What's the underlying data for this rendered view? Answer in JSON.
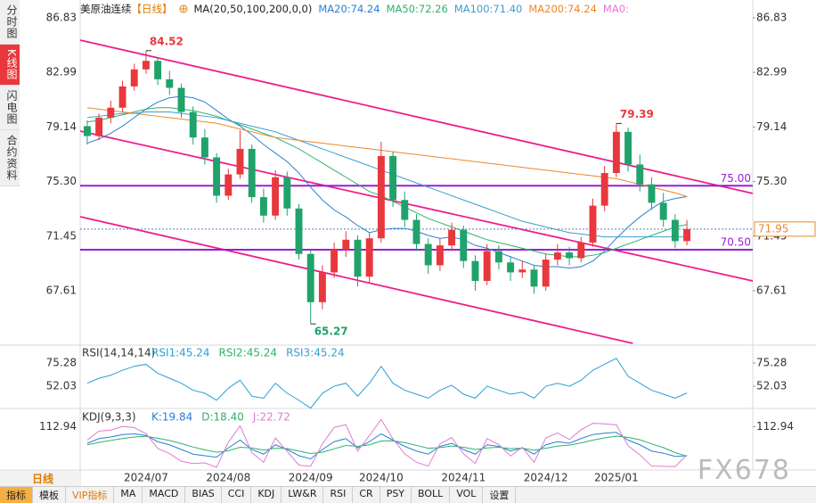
{
  "tabs": [
    "分时图",
    "K线图",
    "闪电图",
    "合约资料"
  ],
  "period_button": "日线",
  "toolbar": [
    "指标",
    "模板",
    "VIP指标",
    "MA",
    "MACD",
    "BIAS",
    "CCI",
    "KDJ",
    "LW&R",
    "RSI",
    "CR",
    "PSY",
    "BOLL",
    "VOL",
    "设置"
  ],
  "watermark": "FX678",
  "chart_data": {
    "type": "candlestick",
    "title": "美原油连续",
    "period": "【日线】",
    "indicator": "MA(20,50,100,200,0,0)",
    "up_color": "#e8383d",
    "down_color": "#1fa36b",
    "categories": [
      null,
      null,
      null,
      null,
      null,
      "2024/07",
      null,
      null,
      null,
      null,
      null,
      null,
      "2024/08",
      null,
      null,
      null,
      null,
      null,
      null,
      "2024/09",
      null,
      null,
      null,
      null,
      null,
      "2024/10",
      null,
      null,
      null,
      null,
      null,
      null,
      "2024/11",
      null,
      null,
      null,
      null,
      null,
      null,
      "2024/12",
      null,
      null,
      null,
      null,
      null,
      "2025/01",
      null,
      null,
      null,
      null,
      null,
      null
    ],
    "xlim": [
      -0.6,
      56.6
    ],
    "ylim": [
      63.9,
      86.83
    ],
    "yticks": [
      86.83,
      82.99,
      79.14,
      {
        "value": 75.3,
        "label": "75.30"
      },
      71.45,
      67.61
    ],
    "candles": [
      [
        79.2,
        79.6,
        77.9,
        78.5
      ],
      [
        78.5,
        80.1,
        78.2,
        79.8
      ],
      [
        79.8,
        81.0,
        79.4,
        80.5
      ],
      [
        80.5,
        82.4,
        80.2,
        82.0
      ],
      [
        82.0,
        83.6,
        81.7,
        83.2
      ],
      [
        83.2,
        84.52,
        82.9,
        83.8
      ],
      [
        83.8,
        84.0,
        82.1,
        82.5
      ],
      [
        82.5,
        83.1,
        81.4,
        81.9
      ],
      [
        81.9,
        82.2,
        79.8,
        80.2
      ],
      [
        80.2,
        80.6,
        77.9,
        78.4
      ],
      [
        78.4,
        79.0,
        76.5,
        77.0
      ],
      [
        77.0,
        77.3,
        73.8,
        74.3
      ],
      [
        74.3,
        76.2,
        74.0,
        75.8
      ],
      [
        75.8,
        78.9,
        75.5,
        77.6
      ],
      [
        77.6,
        77.9,
        73.8,
        74.2
      ],
      [
        74.2,
        74.8,
        72.4,
        72.9
      ],
      [
        72.9,
        76.1,
        72.6,
        75.6
      ],
      [
        75.6,
        76.0,
        72.9,
        73.4
      ],
      [
        73.4,
        73.7,
        69.8,
        70.2
      ],
      [
        70.2,
        70.5,
        65.27,
        66.8
      ],
      [
        66.8,
        69.4,
        66.3,
        68.9
      ],
      [
        68.9,
        71.0,
        68.5,
        70.5
      ],
      [
        70.5,
        71.8,
        70.0,
        71.2
      ],
      [
        71.2,
        71.5,
        67.9,
        68.6
      ],
      [
        68.6,
        71.7,
        68.2,
        71.3
      ],
      [
        71.3,
        78.1,
        71.0,
        77.1
      ],
      [
        77.1,
        77.4,
        73.5,
        74.0
      ],
      [
        74.0,
        74.6,
        72.1,
        72.6
      ],
      [
        72.6,
        73.0,
        70.4,
        70.9
      ],
      [
        70.9,
        71.3,
        68.8,
        69.4
      ],
      [
        69.4,
        71.3,
        69.0,
        70.8
      ],
      [
        70.8,
        72.4,
        70.4,
        71.9
      ],
      [
        71.9,
        72.2,
        69.2,
        69.7
      ],
      [
        69.7,
        70.1,
        67.6,
        68.3
      ],
      [
        68.3,
        70.9,
        68.0,
        70.4
      ],
      [
        70.4,
        70.8,
        69.1,
        69.6
      ],
      [
        69.6,
        70.0,
        68.3,
        68.9
      ],
      [
        68.9,
        69.7,
        68.5,
        69.1
      ],
      [
        69.1,
        69.4,
        67.4,
        67.9
      ],
      [
        67.9,
        70.2,
        67.6,
        69.8
      ],
      [
        69.8,
        70.9,
        69.4,
        70.3
      ],
      [
        70.3,
        70.7,
        69.4,
        69.9
      ],
      [
        69.9,
        71.4,
        69.6,
        71.0
      ],
      [
        71.0,
        74.1,
        70.7,
        73.6
      ],
      [
        73.6,
        76.4,
        73.2,
        75.9
      ],
      [
        75.9,
        79.39,
        75.6,
        78.8
      ],
      [
        78.8,
        79.1,
        76.0,
        76.5
      ],
      [
        76.5,
        77.2,
        74.6,
        75.1
      ],
      [
        75.1,
        75.6,
        73.3,
        73.8
      ],
      [
        73.8,
        74.5,
        72.1,
        72.6
      ],
      [
        72.6,
        73.0,
        70.6,
        71.1
      ],
      [
        71.1,
        72.6,
        70.8,
        71.95
      ]
    ],
    "series": [
      {
        "name": "MA20:74.24",
        "color": "#2a7fd4",
        "values": [
          78.0,
          78.3,
          78.7,
          79.2,
          79.8,
          80.4,
          80.9,
          81.2,
          81.3,
          81.2,
          80.9,
          80.3,
          79.7,
          79.2,
          78.6,
          77.9,
          77.3,
          76.7,
          75.9,
          74.9,
          74.0,
          73.3,
          72.8,
          72.2,
          71.7,
          71.9,
          72.0,
          72.0,
          71.8,
          71.5,
          71.3,
          71.4,
          71.2,
          70.8,
          70.6,
          70.3,
          70.0,
          69.7,
          69.4,
          69.3,
          69.3,
          69.2,
          69.3,
          69.7,
          70.4,
          71.3,
          72.1,
          72.8,
          73.4,
          73.9,
          74.1,
          74.24
        ]
      },
      {
        "name": "MA50:72.26",
        "color": "#2cb36a",
        "values": [
          79.5,
          79.6,
          79.8,
          80.0,
          80.2,
          80.4,
          80.5,
          80.5,
          80.4,
          80.3,
          80.1,
          79.9,
          79.6,
          79.3,
          79.0,
          78.7,
          78.4,
          78.0,
          77.6,
          77.1,
          76.6,
          76.1,
          75.6,
          75.1,
          74.6,
          74.3,
          73.9,
          73.5,
          73.1,
          72.7,
          72.4,
          72.1,
          71.8,
          71.5,
          71.2,
          71.0,
          70.8,
          70.6,
          70.4,
          70.2,
          70.1,
          70.0,
          70.0,
          70.1,
          70.3,
          70.6,
          70.9,
          71.2,
          71.5,
          71.8,
          72.1,
          72.26
        ]
      },
      {
        "name": "MA100:71.40",
        "color": "#3a9ecf",
        "values": [
          79.8,
          79.9,
          80.0,
          80.1,
          80.1,
          80.2,
          80.2,
          80.2,
          80.1,
          80.0,
          79.9,
          79.8,
          79.6,
          79.4,
          79.2,
          79.0,
          78.8,
          78.5,
          78.2,
          77.9,
          77.6,
          77.3,
          77.0,
          76.7,
          76.4,
          76.1,
          75.8,
          75.5,
          75.2,
          74.9,
          74.6,
          74.3,
          74.0,
          73.7,
          73.4,
          73.1,
          72.8,
          72.5,
          72.3,
          72.1,
          71.9,
          71.7,
          71.6,
          71.5,
          71.4,
          71.4,
          71.4,
          71.4,
          71.4,
          71.4,
          71.4,
          71.4
        ]
      },
      {
        "name": "MA200:74.24",
        "color": "#e8892b",
        "values": [
          80.5,
          80.4,
          80.3,
          80.2,
          80.1,
          80.0,
          79.9,
          79.8,
          79.7,
          79.6,
          79.5,
          79.4,
          79.2,
          79.0,
          78.8,
          78.6,
          78.4,
          78.3,
          78.2,
          78.1,
          78.0,
          77.9,
          77.8,
          77.7,
          77.6,
          77.5,
          77.4,
          77.3,
          77.2,
          77.1,
          77.0,
          76.9,
          76.8,
          76.7,
          76.6,
          76.5,
          76.4,
          76.3,
          76.2,
          76.1,
          76.0,
          75.9,
          75.8,
          75.7,
          75.6,
          75.5,
          75.3,
          75.1,
          74.9,
          74.7,
          74.5,
          74.24
        ]
      }
    ],
    "legend_extra": "MA0:",
    "extremes": [
      {
        "x": 5,
        "value": 84.52
      },
      {
        "x": 19,
        "value": 65.27
      },
      {
        "x": 45,
        "value": 79.39
      }
    ],
    "trendlines": [
      {
        "x": [
          -0.6,
          56.6
        ],
        "values": [
          85.26,
          74.46
        ]
      },
      {
        "x": [
          -0.6,
          56.6
        ],
        "values": [
          78.85,
          68.3
        ]
      },
      {
        "x": [
          -0.6,
          46.4
        ],
        "values": [
          72.82,
          63.9
        ]
      }
    ],
    "levels": [
      {
        "value": 75,
        "label": "75.00"
      },
      {
        "value": 70.5,
        "label": "70.50"
      }
    ],
    "last_price": {
      "value": 71.95,
      "label": "71.95"
    },
    "rsi": {
      "title": "RSI(14,14,14)",
      "ylim": [
        32.4,
        90.5
      ],
      "yticks": [
        75.28,
        52.03
      ],
      "series": [
        {
          "name": "RSI1:45.24",
          "color": "#2a9fd6",
          "values": [
            55,
            60,
            63,
            68,
            72,
            74,
            65,
            60,
            55,
            48,
            45,
            38,
            50,
            58,
            42,
            40,
            55,
            45,
            38,
            30,
            45,
            52,
            55,
            42,
            55,
            72,
            55,
            48,
            44,
            40,
            48,
            53,
            44,
            40,
            52,
            48,
            44,
            46,
            40,
            52,
            55,
            52,
            58,
            68,
            74,
            80,
            62,
            55,
            48,
            44,
            40,
            45.24
          ]
        }
      ],
      "legend": [
        "RSI2:45.24",
        "RSI3:45.24"
      ],
      "legend_colors": [
        "#2cb36a",
        "#3a9ecf"
      ]
    },
    "kdj": {
      "title": "KDJ(9,3,3)",
      "ylim": [
        -20,
        160
      ],
      "yticks": [
        112.94
      ],
      "series": [
        {
          "name": "K:19.84",
          "color": "#2a7fd4",
          "values": [
            60,
            75,
            80,
            88,
            90,
            85,
            65,
            55,
            40,
            25,
            20,
            15,
            45,
            70,
            40,
            25,
            55,
            40,
            20,
            10,
            40,
            65,
            75,
            45,
            65,
            90,
            70,
            50,
            35,
            25,
            50,
            60,
            40,
            25,
            55,
            50,
            35,
            45,
            25,
            55,
            65,
            60,
            75,
            88,
            92,
            95,
            70,
            55,
            35,
            28,
            18,
            19.84
          ]
        },
        {
          "name": "D:18.40",
          "color": "#2cb36a",
          "values": [
            55,
            63,
            69,
            75,
            80,
            82,
            76,
            69,
            59,
            48,
            39,
            31,
            36,
            47,
            45,
            38,
            44,
            43,
            35,
            27,
            31,
            42,
            53,
            50,
            55,
            67,
            68,
            62,
            53,
            44,
            46,
            51,
            47,
            40,
            45,
            47,
            43,
            44,
            38,
            44,
            51,
            54,
            61,
            70,
            77,
            83,
            79,
            71,
            58,
            46,
            30,
            18.4
          ]
        },
        {
          "name": "J:22.72",
          "color": "#e07bd0",
          "values": [
            70,
            99,
            102,
            114,
            110,
            91,
            43,
            27,
            2,
            -5,
            -3,
            -17,
            63,
            116,
            30,
            -1,
            77,
            34,
            -10,
            -14,
            58,
            111,
            119,
            35,
            85,
            136,
            74,
            26,
            -1,
            -13,
            58,
            78,
            26,
            -5,
            75,
            56,
            19,
            47,
            -1,
            77,
            93,
            72,
            103,
            124,
            122,
            119,
            52,
            23,
            -13,
            -14,
            -15,
            22.72
          ]
        }
      ]
    }
  }
}
